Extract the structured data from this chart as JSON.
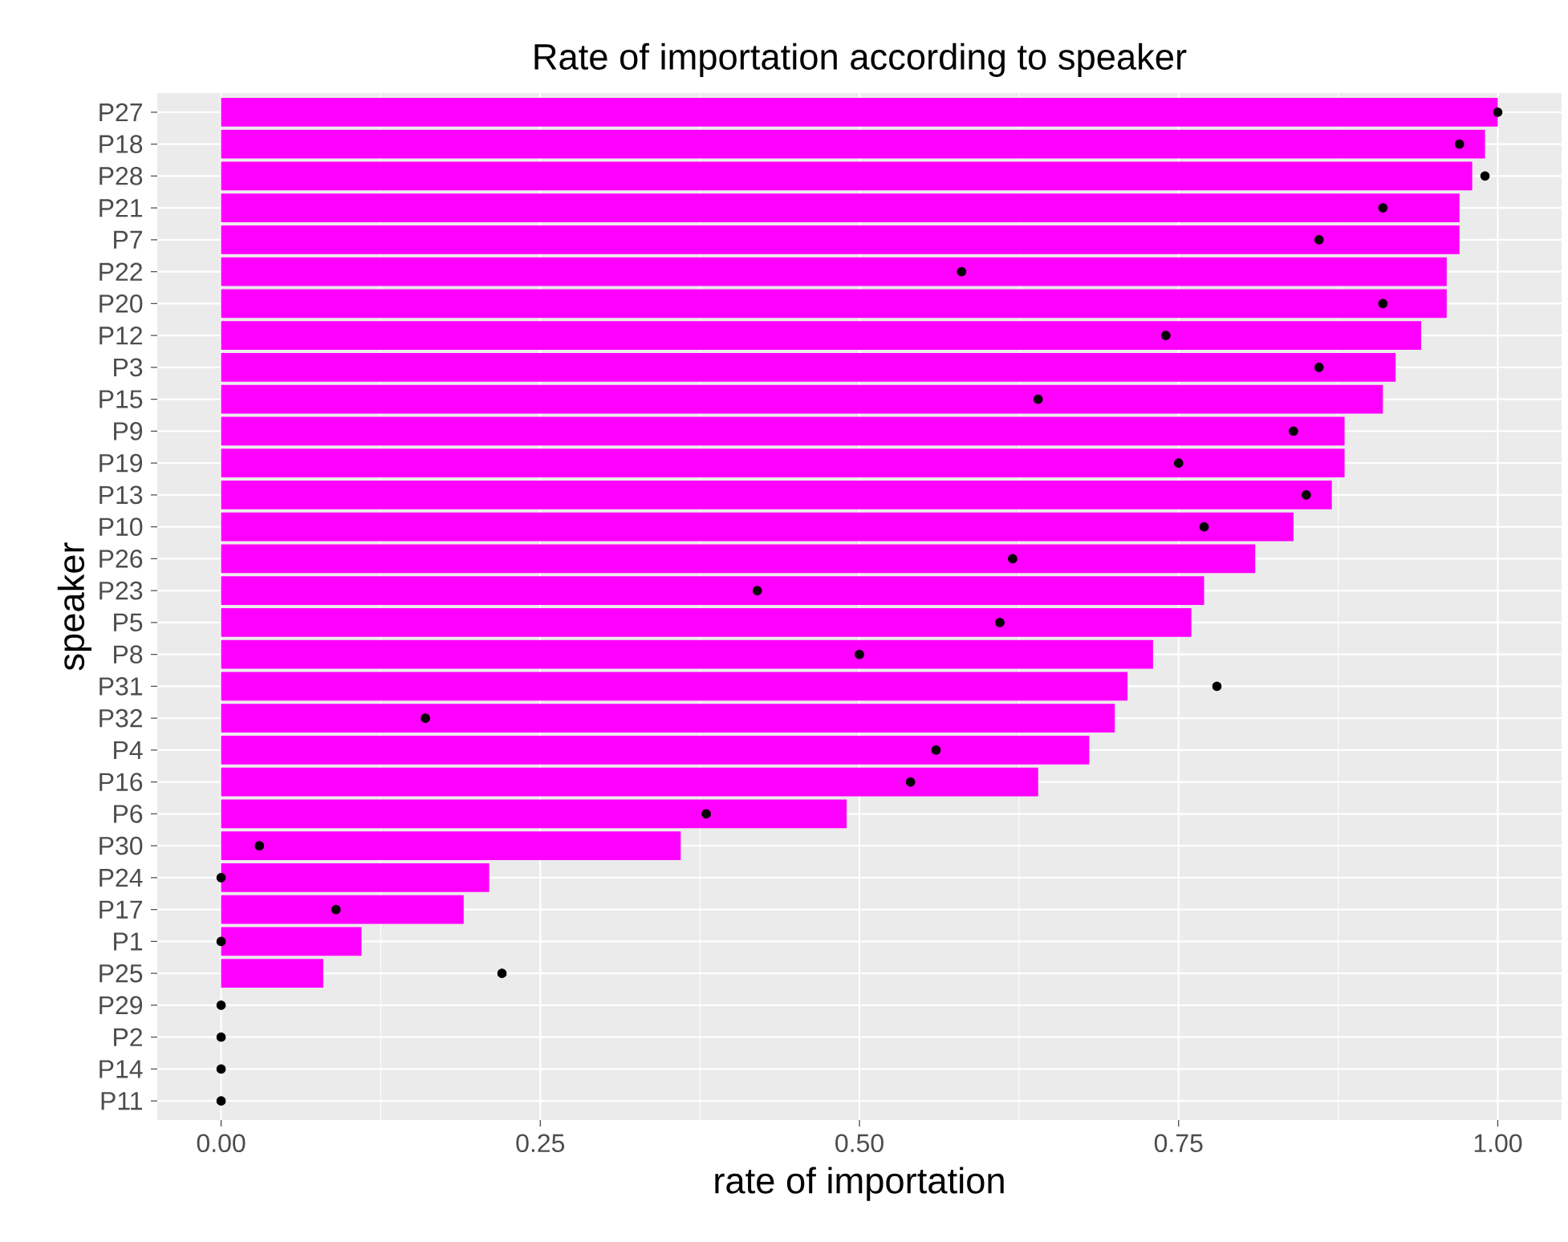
{
  "chart_data": {
    "type": "bar",
    "orientation": "horizontal",
    "title": "Rate of importation according to speaker",
    "xlabel": "rate of importation",
    "ylabel": "speaker",
    "categories": [
      "P27",
      "P18",
      "P28",
      "P21",
      "P7",
      "P22",
      "P20",
      "P12",
      "P3",
      "P15",
      "P9",
      "P19",
      "P13",
      "P10",
      "P26",
      "P23",
      "P5",
      "P8",
      "P31",
      "P32",
      "P4",
      "P16",
      "P6",
      "P30",
      "P24",
      "P17",
      "P1",
      "P25",
      "P29",
      "P2",
      "P14",
      "P11"
    ],
    "series": [
      {
        "type": "bar",
        "color": "#ff00ff",
        "values": [
          1.0,
          0.99,
          0.98,
          0.97,
          0.97,
          0.96,
          0.96,
          0.94,
          0.92,
          0.91,
          0.88,
          0.88,
          0.87,
          0.84,
          0.81,
          0.77,
          0.76,
          0.73,
          0.71,
          0.7,
          0.68,
          0.64,
          0.49,
          0.36,
          0.21,
          0.19,
          0.11,
          0.08,
          0,
          0,
          0,
          0
        ]
      },
      {
        "type": "scatter",
        "color": "#000000",
        "marker": "circle",
        "values": [
          1.0,
          0.97,
          0.99,
          0.91,
          0.86,
          0.58,
          0.91,
          0.74,
          0.86,
          0.64,
          0.84,
          0.75,
          0.85,
          0.77,
          0.62,
          0.42,
          0.61,
          0.5,
          0.78,
          0.16,
          0.56,
          0.54,
          0.38,
          0.03,
          0,
          0.09,
          0,
          0.22,
          0,
          0,
          0,
          0
        ]
      }
    ],
    "xlim": [
      -0.05,
      1.05
    ],
    "xticks": [
      {
        "value": 0,
        "label": "0.00"
      },
      {
        "value": 0.25,
        "label": "0.25"
      },
      {
        "value": 0.5,
        "label": "0.50"
      },
      {
        "value": 0.75,
        "label": "0.75"
      },
      {
        "value": 1,
        "label": "1.00"
      }
    ],
    "grid": true
  }
}
